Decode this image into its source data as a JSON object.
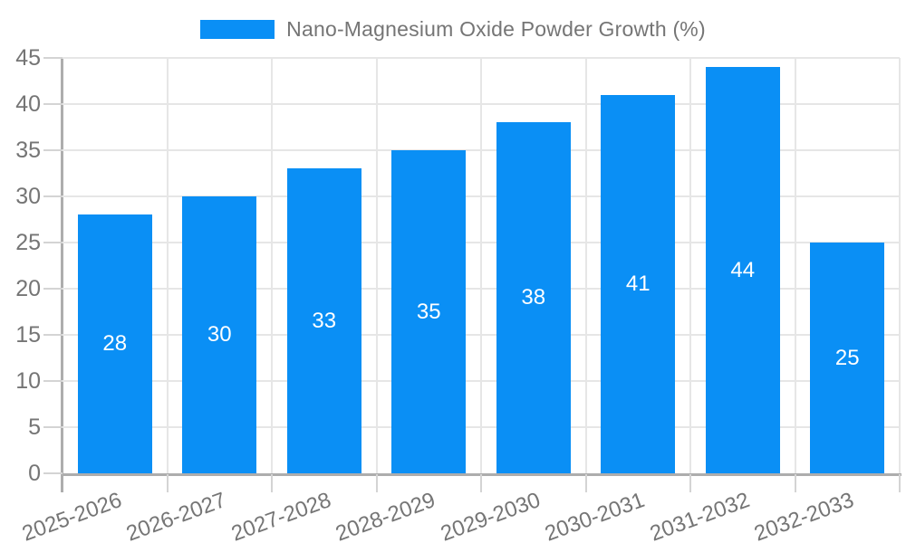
{
  "chart_data": {
    "type": "bar",
    "title": "Nano-Magnesium Oxide Powder Growth (%)",
    "categories": [
      "2025-2026",
      "2026-2027",
      "2027-2028",
      "2028-2029",
      "2029-2030",
      "2030-2031",
      "2031-2032",
      "2032-2033"
    ],
    "values": [
      28,
      30,
      33,
      35,
      38,
      41,
      44,
      25
    ],
    "xlabel": "",
    "ylabel": "",
    "ylim": [
      0,
      45
    ],
    "ytick_step": 5,
    "grid": "both",
    "legend_position": "top",
    "value_labels": "inside-center",
    "x_label_rotation_deg": -20,
    "colors": {
      "bar": "#0a8ff5",
      "grid": "#e6e6e6",
      "tick": "#d4d4d4",
      "axis": "#adadad",
      "label_text": "#757575",
      "value_label_text": "#ffffff"
    }
  }
}
